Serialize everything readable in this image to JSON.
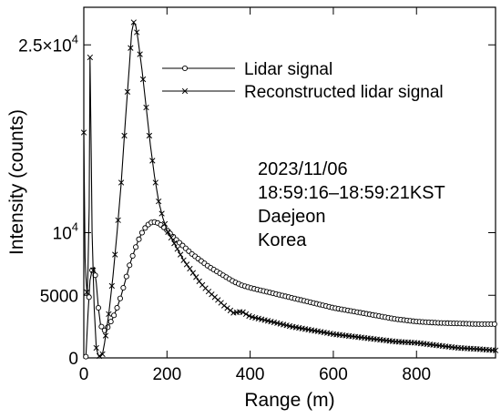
{
  "chart_data": {
    "type": "line",
    "xlabel": "Range (m)",
    "ylabel": "Intensity (counts)",
    "xlim": [
      0,
      990
    ],
    "ylim": [
      0,
      28000
    ],
    "x_ticks": [
      0,
      200,
      400,
      600,
      800
    ],
    "y_ticks": [
      {
        "value": 0,
        "label": "0",
        "sup": ""
      },
      {
        "value": 5000,
        "label": "5000",
        "sup": ""
      },
      {
        "value": 10000,
        "label": "10",
        "sup": "4"
      },
      {
        "value": 25000,
        "label": "2.5×10",
        "sup": "4"
      }
    ],
    "legend_position": "top-center",
    "annotation": [
      "2023/11/06",
      "18:59:16–18:59:21KST",
      "Daejeon",
      "Korea"
    ],
    "series": [
      {
        "name": "Lidar signal",
        "marker": "circle",
        "points": [
          [
            5,
            100
          ],
          [
            10,
            3500
          ],
          [
            15,
            6200
          ],
          [
            20,
            7000
          ],
          [
            25,
            7200
          ],
          [
            30,
            6000
          ],
          [
            35,
            4000
          ],
          [
            40,
            2700
          ],
          [
            45,
            2300
          ],
          [
            50,
            2200
          ],
          [
            55,
            2300
          ],
          [
            60,
            2600
          ],
          [
            70,
            3200
          ],
          [
            80,
            4000
          ],
          [
            90,
            5000
          ],
          [
            100,
            6200
          ],
          [
            110,
            7400
          ],
          [
            120,
            8400
          ],
          [
            130,
            9300
          ],
          [
            140,
            10000
          ],
          [
            150,
            10500
          ],
          [
            160,
            10800
          ],
          [
            170,
            10850
          ],
          [
            180,
            10750
          ],
          [
            190,
            10500
          ],
          [
            200,
            10200
          ],
          [
            220,
            9500
          ],
          [
            240,
            8900
          ],
          [
            260,
            8300
          ],
          [
            280,
            7800
          ],
          [
            300,
            7300
          ],
          [
            320,
            6900
          ],
          [
            340,
            6500
          ],
          [
            360,
            6100
          ],
          [
            380,
            5800
          ],
          [
            400,
            5600
          ],
          [
            450,
            5200
          ],
          [
            500,
            4800
          ],
          [
            550,
            4400
          ],
          [
            600,
            4000
          ],
          [
            650,
            3700
          ],
          [
            700,
            3400
          ],
          [
            750,
            3100
          ],
          [
            800,
            2900
          ],
          [
            850,
            2800
          ],
          [
            900,
            2750
          ],
          [
            950,
            2700
          ],
          [
            990,
            2700
          ]
        ]
      },
      {
        "name": "Reconstructed lidar signal",
        "marker": "x",
        "points": [
          [
            0,
            18000
          ],
          [
            3,
            8000
          ],
          [
            5,
            6500
          ],
          [
            8,
            5000
          ],
          [
            10,
            7000
          ],
          [
            13,
            12000
          ],
          [
            15,
            24000
          ],
          [
            18,
            16000
          ],
          [
            20,
            10000
          ],
          [
            25,
            4000
          ],
          [
            30,
            800
          ],
          [
            35,
            200
          ],
          [
            40,
            100
          ],
          [
            45,
            300
          ],
          [
            50,
            1200
          ],
          [
            60,
            3500
          ],
          [
            70,
            6500
          ],
          [
            80,
            10000
          ],
          [
            90,
            14000
          ],
          [
            100,
            19000
          ],
          [
            110,
            23500
          ],
          [
            115,
            26000
          ],
          [
            120,
            26800
          ],
          [
            125,
            26500
          ],
          [
            130,
            25500
          ],
          [
            140,
            23000
          ],
          [
            150,
            20000
          ],
          [
            160,
            17000
          ],
          [
            170,
            14500
          ],
          [
            180,
            12500
          ],
          [
            190,
            11200
          ],
          [
            200,
            10200
          ],
          [
            220,
            9000
          ],
          [
            240,
            7800
          ],
          [
            260,
            6900
          ],
          [
            280,
            6000
          ],
          [
            300,
            5300
          ],
          [
            320,
            4700
          ],
          [
            340,
            4100
          ],
          [
            360,
            3600
          ],
          [
            380,
            3700
          ],
          [
            400,
            3300
          ],
          [
            450,
            2900
          ],
          [
            500,
            2500
          ],
          [
            550,
            2200
          ],
          [
            600,
            1900
          ],
          [
            650,
            1700
          ],
          [
            700,
            1500
          ],
          [
            750,
            1300
          ],
          [
            800,
            1200
          ],
          [
            850,
            1000
          ],
          [
            900,
            800
          ],
          [
            950,
            700
          ],
          [
            990,
            600
          ]
        ]
      }
    ]
  }
}
